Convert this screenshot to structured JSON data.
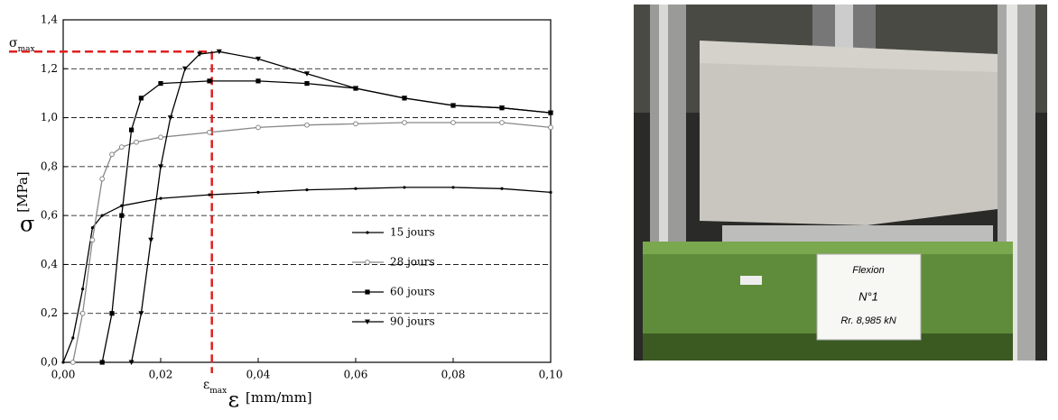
{
  "chart_data": {
    "type": "line",
    "y_label": {
      "symbol": "σ",
      "unit": "[MPa]"
    },
    "x_label": {
      "symbol": "ε",
      "unit": "[mm/mm]"
    },
    "annotations": {
      "sigma_max": {
        "symbol": "σ",
        "sub": "max"
      },
      "eps_max": {
        "symbol": "ε",
        "sub": "max"
      }
    },
    "reference": {
      "x": 0.0305,
      "y": 1.27,
      "color": "#e02020"
    },
    "xlim": [
      0,
      0.1
    ],
    "xticks": [
      {
        "value": 0,
        "label": "0,00"
      },
      {
        "value": 0.02,
        "label": "0,02"
      },
      {
        "value": 0.04,
        "label": "0,04"
      },
      {
        "value": 0.06,
        "label": "0,06"
      },
      {
        "value": 0.08,
        "label": "0,08"
      },
      {
        "value": 0.1,
        "label": "0,10"
      }
    ],
    "ylim": [
      0,
      1.4
    ],
    "yticks": [
      {
        "value": 0,
        "label": "0,0"
      },
      {
        "value": 0.2,
        "label": "0,2"
      },
      {
        "value": 0.4,
        "label": "0,4"
      },
      {
        "value": 0.6,
        "label": "0,6"
      },
      {
        "value": 0.8,
        "label": "0,8"
      },
      {
        "value": 1,
        "label": "1,0"
      },
      {
        "value": 1.2,
        "label": "1,2"
      },
      {
        "value": 1.4,
        "label": "1,4"
      }
    ],
    "grid": true,
    "series": [
      {
        "name": "15 jours",
        "color": "#000000",
        "marker": "dot",
        "x": [
          0,
          0.002,
          0.004,
          0.006,
          0.008,
          0.012,
          0.02,
          0.03,
          0.04,
          0.05,
          0.06,
          0.07,
          0.08,
          0.09,
          0.1
        ],
        "values": [
          0,
          0.1,
          0.3,
          0.55,
          0.6,
          0.64,
          0.67,
          0.685,
          0.695,
          0.705,
          0.71,
          0.715,
          0.715,
          0.71,
          0.695
        ]
      },
      {
        "name": "28 jours",
        "color": "#888888",
        "marker": "circle",
        "x": [
          0.002,
          0.004,
          0.006,
          0.008,
          0.01,
          0.012,
          0.015,
          0.02,
          0.03,
          0.04,
          0.05,
          0.06,
          0.07,
          0.08,
          0.09,
          0.1
        ],
        "values": [
          0,
          0.2,
          0.5,
          0.75,
          0.85,
          0.88,
          0.9,
          0.92,
          0.94,
          0.96,
          0.97,
          0.975,
          0.98,
          0.98,
          0.98,
          0.96
        ]
      },
      {
        "name": "60 jours",
        "color": "#000000",
        "marker": "square",
        "x": [
          0.008,
          0.01,
          0.012,
          0.014,
          0.016,
          0.02,
          0.03,
          0.04,
          0.05,
          0.06,
          0.07,
          0.08,
          0.09,
          0.1
        ],
        "values": [
          0,
          0.2,
          0.6,
          0.95,
          1.08,
          1.14,
          1.15,
          1.15,
          1.14,
          1.12,
          1.08,
          1.05,
          1.04,
          1.02
        ]
      },
      {
        "name": "90 jours",
        "color": "#000000",
        "marker": "triangle",
        "x": [
          0.014,
          0.016,
          0.018,
          0.02,
          0.022,
          0.025,
          0.028,
          0.032,
          0.04,
          0.05,
          0.06,
          0.07,
          0.08,
          0.09,
          0.1
        ],
        "values": [
          0,
          0.2,
          0.5,
          0.8,
          1.0,
          1.2,
          1.26,
          1.27,
          1.24,
          1.18,
          1.12,
          1.08,
          1.05,
          1.04,
          1.02
        ]
      }
    ]
  },
  "photo": {
    "sign": [
      "Flexion",
      "N°1",
      "Rr. 8,985 kN"
    ]
  }
}
